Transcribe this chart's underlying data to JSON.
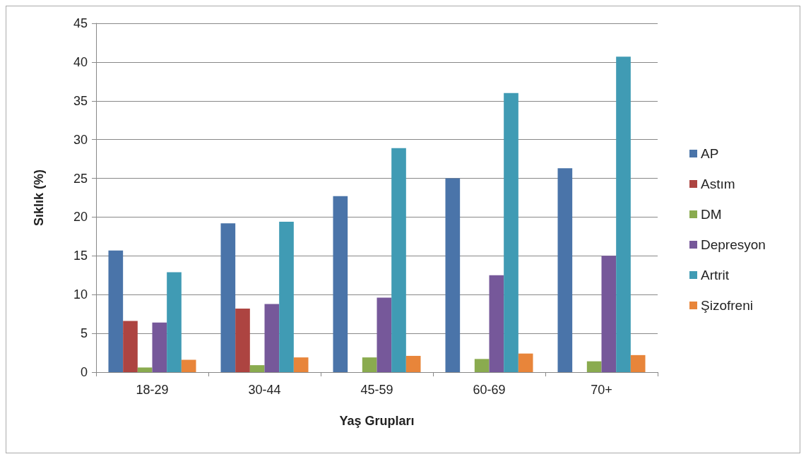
{
  "chart_data": {
    "type": "bar",
    "xlabel": "Yaş Grupları",
    "ylabel": "Sıklık (%)",
    "categories": [
      "18-29",
      "30-44",
      "45-59",
      "60-69",
      "70+"
    ],
    "series": [
      {
        "name": "AP",
        "color": "#4a74a9",
        "values": [
          15.7,
          19.2,
          22.7,
          25.0,
          26.3
        ]
      },
      {
        "name": "Astım",
        "color": "#ad4441",
        "values": [
          6.6,
          8.2,
          null,
          null,
          null
        ]
      },
      {
        "name": "DM",
        "color": "#8aab4f",
        "values": [
          0.6,
          0.9,
          1.9,
          1.7,
          1.4
        ]
      },
      {
        "name": "Depresyon",
        "color": "#76589a",
        "values": [
          6.4,
          8.8,
          9.6,
          12.5,
          15.0
        ]
      },
      {
        "name": "Artrit",
        "color": "#409bb4",
        "values": [
          12.9,
          19.4,
          28.9,
          36.0,
          40.7
        ]
      },
      {
        "name": "Şizofreni",
        "color": "#e8853a",
        "values": [
          1.6,
          1.9,
          2.1,
          2.4,
          2.2
        ]
      }
    ],
    "ylim": [
      0,
      45
    ],
    "yticks": [
      0,
      5,
      10,
      15,
      20,
      25,
      30,
      35,
      40,
      45
    ],
    "grid": "y",
    "legend": "right"
  }
}
